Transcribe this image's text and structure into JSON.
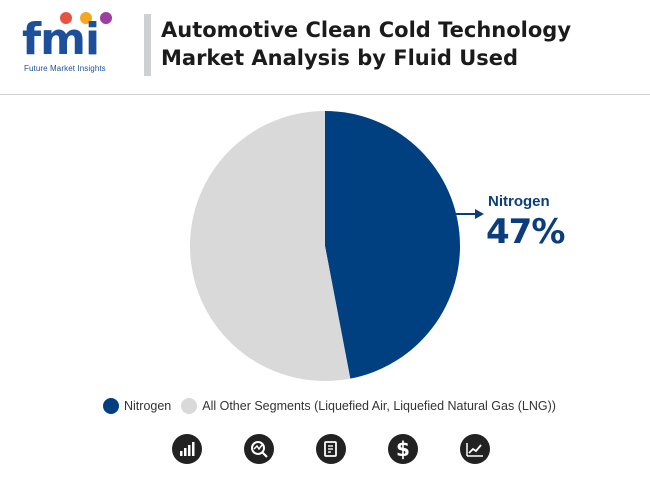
{
  "header": {
    "logo_text": "fmi",
    "logo_subtitle": "Future Market Insights",
    "title_line1": "Automotive Clean Cold Technology",
    "title_line2": "Market Analysis by Fluid Used"
  },
  "colors": {
    "nitrogen": "#003f80",
    "other": "#d9d9d9",
    "title": "#1b1b1b",
    "brand_blue": "#1c4f9c"
  },
  "chart_data": {
    "type": "pie",
    "title": "Automotive Clean Cold Technology Market Analysis by Fluid Used",
    "slices": [
      {
        "label": "Nitrogen",
        "value": 47,
        "color": "#003f80"
      },
      {
        "label": "All Other Segments (Liquefied Air, Liquefied Natural Gas (LNG))",
        "value": 53,
        "color": "#d9d9d9"
      }
    ],
    "callout": {
      "label": "Nitrogen",
      "value_text": "47%"
    },
    "legend_position": "bottom"
  },
  "legend": {
    "items": [
      {
        "label": "Nitrogen",
        "color": "#003f80"
      },
      {
        "label": "All Other Segments (Liquefied Air, Liquefied Natural Gas (LNG))",
        "color": "#d9d9d9"
      }
    ]
  },
  "footer_icons": [
    "bar-chart-icon",
    "magnifier-chart-icon",
    "document-icon",
    "dollar-icon",
    "line-chart-icon"
  ]
}
